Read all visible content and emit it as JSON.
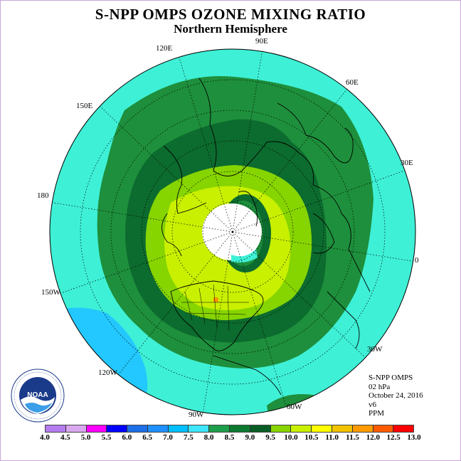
{
  "title": "S-NPP OMPS OZONE MIXING RATIO",
  "subtitle": "Northern Hemisphere",
  "longitude_labels": {
    "e90": "90E",
    "e120": "120E",
    "e60": "60E",
    "e150": "150E",
    "e30": "30E",
    "d180": "180",
    "d0": "0",
    "w150": "150W",
    "w30": "30W",
    "w120": "120W",
    "w90": "90W",
    "w60": "60W"
  },
  "info": {
    "instrument": "S-NPP OMPS",
    "level": "02 hPa",
    "date": "October 24, 2016",
    "version": "v6",
    "units": "PPM"
  },
  "logo": {
    "text": "NOAA",
    "ring_text": "NATIONAL OCEANIC AND ATMOSPHERIC ADMINISTRATION · U.S. DEPARTMENT OF COMMERCE"
  },
  "colorbar": {
    "ticks": [
      "4.0",
      "4.5",
      "5.0",
      "5.5",
      "6.0",
      "6.5",
      "7.0",
      "7.5",
      "8.0",
      "8.5",
      "9.0",
      "9.5",
      "10.0",
      "10.5",
      "11.0",
      "11.5",
      "12.0",
      "12.5",
      "13.0"
    ],
    "colors": [
      "#b57cf0",
      "#d9a8ef",
      "#ff00ff",
      "#0000ff",
      "#1e6fe8",
      "#1e90ff",
      "#00bfff",
      "#3ee6ff",
      "#1e9e4a",
      "#0e7a30",
      "#0a5e25",
      "#88d400",
      "#c8f000",
      "#ffff00",
      "#f3c300",
      "#ff9a00",
      "#ff5a00",
      "#ff0000",
      "#8b4a2a"
    ]
  },
  "map_colors": {
    "background": "#3ef0d6",
    "ring_85": "#1e8f3c",
    "ring_90": "#0c6b2e",
    "ring_95": "#86d400",
    "ring_100": "#c8f000",
    "polar_night": "#ffffff",
    "low_blue": "#00bfff"
  }
}
